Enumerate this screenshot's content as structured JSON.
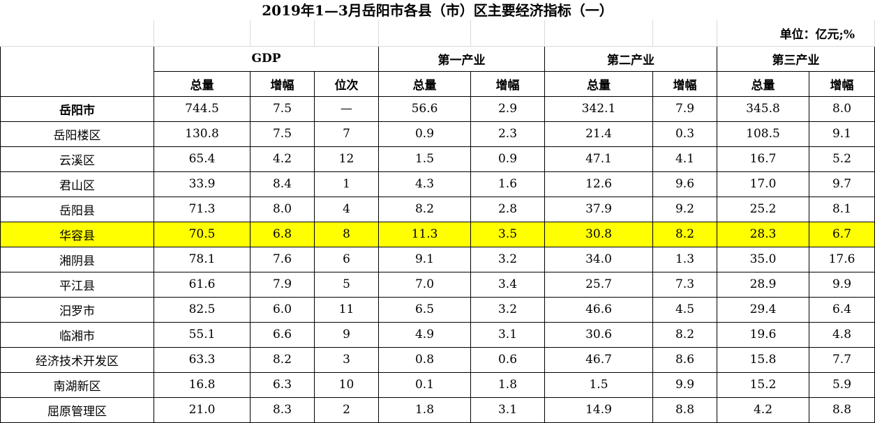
{
  "title": "2019年1—3月岳阳市各县（市）区主要经济指标（一）",
  "unit": "单位：亿元;%",
  "groups": {
    "gdp": "GDP",
    "primary": "第一产业",
    "secondary": "第二产业",
    "tertiary": "第三产业"
  },
  "subheaders": {
    "total": "总量",
    "growth": "增幅",
    "rank": "位次"
  },
  "highlight_color": "#ffff00",
  "rows": [
    {
      "region": "岳阳市",
      "gdp_total": "744.5",
      "gdp_growth": "7.5",
      "gdp_rank": "—",
      "p1_total": "56.6",
      "p1_growth": "2.9",
      "p2_total": "342.1",
      "p2_growth": "7.9",
      "p3_total": "345.8",
      "p3_growth": "8.0"
    },
    {
      "region": "岳阳楼区",
      "gdp_total": "130.8",
      "gdp_growth": "7.5",
      "gdp_rank": "7",
      "p1_total": "0.9",
      "p1_growth": "2.3",
      "p2_total": "21.4",
      "p2_growth": "0.3",
      "p3_total": "108.5",
      "p3_growth": "9.1"
    },
    {
      "region": "云溪区",
      "gdp_total": "65.4",
      "gdp_growth": "4.2",
      "gdp_rank": "12",
      "p1_total": "1.5",
      "p1_growth": "0.9",
      "p2_total": "47.1",
      "p2_growth": "4.1",
      "p3_total": "16.7",
      "p3_growth": "5.2"
    },
    {
      "region": "君山区",
      "gdp_total": "33.9",
      "gdp_growth": "8.4",
      "gdp_rank": "1",
      "p1_total": "4.3",
      "p1_growth": "1.6",
      "p2_total": "12.6",
      "p2_growth": "9.6",
      "p3_total": "17.0",
      "p3_growth": "9.7"
    },
    {
      "region": "岳阳县",
      "gdp_total": "71.3",
      "gdp_growth": "8.0",
      "gdp_rank": "4",
      "p1_total": "8.2",
      "p1_growth": "2.8",
      "p2_total": "37.9",
      "p2_growth": "9.2",
      "p3_total": "25.2",
      "p3_growth": "8.1"
    },
    {
      "region": "华容县",
      "gdp_total": "70.5",
      "gdp_growth": "6.8",
      "gdp_rank": "8",
      "p1_total": "11.3",
      "p1_growth": "3.5",
      "p2_total": "30.8",
      "p2_growth": "8.2",
      "p3_total": "28.3",
      "p3_growth": "6.7"
    },
    {
      "region": "湘阴县",
      "gdp_total": "78.1",
      "gdp_growth": "7.6",
      "gdp_rank": "6",
      "p1_total": "9.1",
      "p1_growth": "3.2",
      "p2_total": "34.0",
      "p2_growth": "1.3",
      "p3_total": "35.0",
      "p3_growth": "17.6"
    },
    {
      "region": "平江县",
      "gdp_total": "61.6",
      "gdp_growth": "7.9",
      "gdp_rank": "5",
      "p1_total": "7.0",
      "p1_growth": "3.4",
      "p2_total": "25.7",
      "p2_growth": "7.3",
      "p3_total": "28.9",
      "p3_growth": "9.9"
    },
    {
      "region": "汨罗市",
      "gdp_total": "82.5",
      "gdp_growth": "6.0",
      "gdp_rank": "11",
      "p1_total": "6.5",
      "p1_growth": "3.2",
      "p2_total": "46.6",
      "p2_growth": "4.5",
      "p3_total": "29.4",
      "p3_growth": "6.4"
    },
    {
      "region": "临湘市",
      "gdp_total": "55.1",
      "gdp_growth": "6.6",
      "gdp_rank": "9",
      "p1_total": "4.9",
      "p1_growth": "3.1",
      "p2_total": "30.6",
      "p2_growth": "8.2",
      "p3_total": "19.6",
      "p3_growth": "4.8"
    },
    {
      "region": "经济技术开发区",
      "gdp_total": "63.3",
      "gdp_growth": "8.2",
      "gdp_rank": "3",
      "p1_total": "0.8",
      "p1_growth": "0.6",
      "p2_total": "46.7",
      "p2_growth": "8.6",
      "p3_total": "15.8",
      "p3_growth": "7.7"
    },
    {
      "region": "南湖新区",
      "gdp_total": "16.8",
      "gdp_growth": "6.3",
      "gdp_rank": "10",
      "p1_total": "0.1",
      "p1_growth": "1.8",
      "p2_total": "1.5",
      "p2_growth": "9.9",
      "p3_total": "15.2",
      "p3_growth": "5.9"
    },
    {
      "region": "屈原管理区",
      "gdp_total": "21.0",
      "gdp_growth": "8.3",
      "gdp_rank": "2",
      "p1_total": "1.8",
      "p1_growth": "3.1",
      "p2_total": "14.9",
      "p2_growth": "8.8",
      "p3_total": "4.2",
      "p3_growth": "8.8"
    }
  ]
}
